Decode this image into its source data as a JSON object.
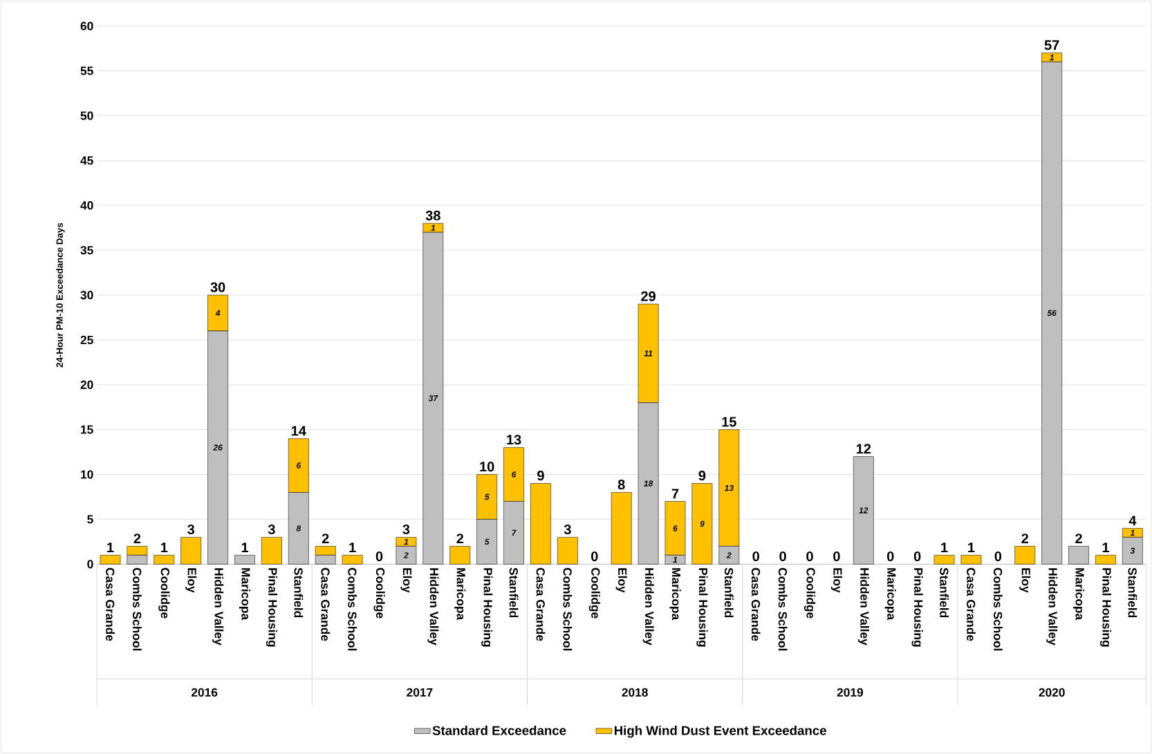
{
  "chart_data": {
    "type": "bar",
    "stacked": true,
    "ylabel": "24-Hour PM-10 Exceedance Days",
    "categories": [
      "Casa Grande",
      "Combs School",
      "Coolidge",
      "Eloy",
      "Hidden Valley",
      "Maricopa",
      "Pinal Housing",
      "Stanfield",
      "Casa Grande",
      "Combs School",
      "Coolidge",
      "Eloy",
      "Hidden Valley",
      "Maricopa",
      "Pinal Housing",
      "Stanfield",
      "Casa Grande",
      "Combs School",
      "Coolidge",
      "Eloy",
      "Hidden Valley",
      "Maricopa",
      "Pinal Housing",
      "Stanfield",
      "Casa Grande",
      "Combs School",
      "Coolidge",
      "Eloy",
      "Hidden Valley",
      "Maricopa",
      "Pinal Housing",
      "Stanfield",
      "Casa Grande",
      "Combs School",
      "Eloy",
      "Hidden Valley",
      "Maricopa",
      "Pinal Housing",
      "Stanfield"
    ],
    "series": [
      {
        "name": "Standard Exceedance",
        "color": "#bfbfbf",
        "values": [
          0,
          1,
          0,
          0,
          26,
          1,
          0,
          8,
          1,
          0,
          0,
          2,
          37,
          0,
          5,
          7,
          0,
          0,
          0,
          0,
          18,
          1,
          0,
          2,
          0,
          0,
          0,
          0,
          12,
          0,
          0,
          0,
          0,
          0,
          0,
          56,
          2,
          0,
          3
        ],
        "value_labels": [
          null,
          null,
          null,
          null,
          "26",
          null,
          null,
          "8",
          null,
          null,
          null,
          "2",
          "37",
          null,
          "5",
          "7",
          null,
          null,
          null,
          null,
          "18",
          "1",
          null,
          "2",
          null,
          null,
          null,
          null,
          "12",
          null,
          null,
          null,
          null,
          null,
          null,
          "56",
          null,
          null,
          "3"
        ]
      },
      {
        "name": "High Wind Dust Event Exceedance",
        "color": "#ffc000",
        "values": [
          1,
          1,
          1,
          3,
          4,
          0,
          3,
          6,
          1,
          1,
          0,
          1,
          1,
          2,
          5,
          6,
          9,
          3,
          0,
          8,
          11,
          6,
          9,
          13,
          0,
          0,
          0,
          0,
          0,
          0,
          0,
          1,
          1,
          0,
          2,
          1,
          0,
          1,
          1
        ],
        "value_labels": [
          null,
          null,
          null,
          null,
          "4",
          null,
          null,
          "6",
          null,
          null,
          null,
          "1",
          "1",
          null,
          "5",
          "6",
          null,
          null,
          null,
          null,
          "11",
          "6",
          "9",
          "13",
          null,
          null,
          null,
          null,
          null,
          null,
          null,
          null,
          null,
          null,
          null,
          "1",
          null,
          null,
          "1"
        ]
      }
    ],
    "totals": [
      "1",
      "2",
      "1",
      "3",
      "30",
      "1",
      "3",
      "14",
      "2",
      "1",
      "0",
      "3",
      "38",
      "2",
      "10",
      "13",
      "9",
      "3",
      "0",
      "8",
      "29",
      "7",
      "9",
      "15",
      "0",
      "0",
      "0",
      "0",
      "12",
      "0",
      "0",
      "1",
      "1",
      "0",
      "2",
      "57",
      "2",
      "1",
      "4"
    ],
    "annotations": [
      "2016",
      "2017",
      "2018",
      "2019",
      "2020"
    ],
    "ylim": [
      0,
      60
    ],
    "yticks": [
      0,
      5,
      10,
      15,
      20,
      25,
      30,
      35,
      40,
      45,
      50,
      55,
      60
    ],
    "grid": "y",
    "legend": "bottom"
  }
}
